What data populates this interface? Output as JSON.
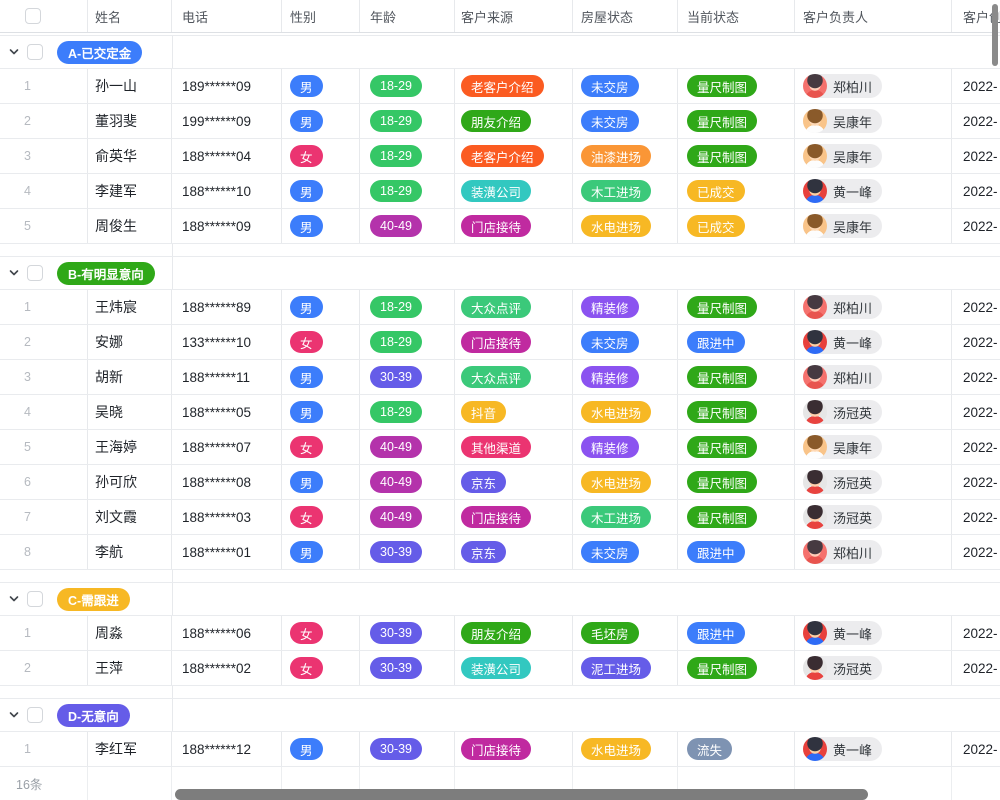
{
  "palette": {
    "blue": "#3c7dfb",
    "green": "#2fa818",
    "emerald": "#35c766",
    "mint": "#3bc97a",
    "indigo": "#655ce8",
    "violet": "#8b53f0",
    "magenta": "#b433ab",
    "deep_magenta": "#c02aa0",
    "pink": "#eb3471",
    "orange_red": "#fb5b21",
    "orange": "#fa9636",
    "amber": "#f7b824",
    "teal": "#32c8c0",
    "slate": "#7e93b2"
  },
  "header": {
    "columns": [
      {
        "label": "姓名"
      },
      {
        "label": "电话"
      },
      {
        "label": "性别"
      },
      {
        "label": "年龄"
      },
      {
        "label": "客户来源"
      },
      {
        "label": "房屋状态"
      },
      {
        "label": "当前状态"
      },
      {
        "label": "客户负责人"
      },
      {
        "label": "客户创建时间"
      }
    ]
  },
  "owners": {
    "郑柏川": {
      "bg": "#f5716d",
      "hair": "#463a41",
      "face": "#ffcdb8",
      "shirt": "#e8544e"
    },
    "吴康年": {
      "bg": "#f9c489",
      "hair": "#8a5a2a",
      "face": "#ffd9b5",
      "shirt": "#fdfdfd"
    },
    "黄一峰": {
      "bg": "#e8413c",
      "hair": "#30333f",
      "face": "#ffcf9f",
      "shirt": "#2e6bf6"
    },
    "汤冠英": {
      "bg": "#e6e6e6",
      "hair": "#3a2d32",
      "face": "#ffd1ad",
      "shirt": "#e8433f"
    }
  },
  "groups": [
    {
      "label": "A-已交定金",
      "color": "blue",
      "rows": [
        {
          "num": "1",
          "name": "孙一山",
          "phone": "189******09",
          "gender": {
            "text": "男",
            "color": "blue"
          },
          "age": {
            "text": "18-29",
            "color": "emerald"
          },
          "source": {
            "text": "老客户介绍",
            "color": "orange_red"
          },
          "house": {
            "text": "未交房",
            "color": "blue"
          },
          "status": {
            "text": "量尺制图",
            "color": "green"
          },
          "owner": "郑柏川",
          "created": "2022-"
        },
        {
          "num": "2",
          "name": "董羽斐",
          "phone": "199******09",
          "gender": {
            "text": "男",
            "color": "blue"
          },
          "age": {
            "text": "18-29",
            "color": "emerald"
          },
          "source": {
            "text": "朋友介绍",
            "color": "green"
          },
          "house": {
            "text": "未交房",
            "color": "blue"
          },
          "status": {
            "text": "量尺制图",
            "color": "green"
          },
          "owner": "吴康年",
          "created": "2022-"
        },
        {
          "num": "3",
          "name": "俞英华",
          "phone": "188******04",
          "gender": {
            "text": "女",
            "color": "pink"
          },
          "age": {
            "text": "18-29",
            "color": "emerald"
          },
          "source": {
            "text": "老客户介绍",
            "color": "orange_red"
          },
          "house": {
            "text": "油漆进场",
            "color": "orange"
          },
          "status": {
            "text": "量尺制图",
            "color": "green"
          },
          "owner": "吴康年",
          "created": "2022-"
        },
        {
          "num": "4",
          "name": "李建军",
          "phone": "188******10",
          "gender": {
            "text": "男",
            "color": "blue"
          },
          "age": {
            "text": "18-29",
            "color": "emerald"
          },
          "source": {
            "text": "装潢公司",
            "color": "teal"
          },
          "house": {
            "text": "木工进场",
            "color": "mint"
          },
          "status": {
            "text": "已成交",
            "color": "amber"
          },
          "owner": "黄一峰",
          "created": "2022-"
        },
        {
          "num": "5",
          "name": "周俊生",
          "phone": "188******09",
          "gender": {
            "text": "男",
            "color": "blue"
          },
          "age": {
            "text": "40-49",
            "color": "magenta"
          },
          "source": {
            "text": "门店接待",
            "color": "deep_magenta"
          },
          "house": {
            "text": "水电进场",
            "color": "amber"
          },
          "status": {
            "text": "已成交",
            "color": "amber"
          },
          "owner": "吴康年",
          "created": "2022-"
        }
      ]
    },
    {
      "label": "B-有明显意向",
      "color": "green",
      "rows": [
        {
          "num": "1",
          "name": "王炜宸",
          "phone": "188******89",
          "gender": {
            "text": "男",
            "color": "blue"
          },
          "age": {
            "text": "18-29",
            "color": "emerald"
          },
          "source": {
            "text": "大众点评",
            "color": "mint"
          },
          "house": {
            "text": "精装修",
            "color": "violet"
          },
          "status": {
            "text": "量尺制图",
            "color": "green"
          },
          "owner": "郑柏川",
          "created": "2022-"
        },
        {
          "num": "2",
          "name": "安娜",
          "phone": "133******10",
          "gender": {
            "text": "女",
            "color": "pink"
          },
          "age": {
            "text": "18-29",
            "color": "emerald"
          },
          "source": {
            "text": "门店接待",
            "color": "deep_magenta"
          },
          "house": {
            "text": "未交房",
            "color": "blue"
          },
          "status": {
            "text": "跟进中",
            "color": "blue"
          },
          "owner": "黄一峰",
          "created": "2022-"
        },
        {
          "num": "3",
          "name": "胡新",
          "phone": "188******11",
          "gender": {
            "text": "男",
            "color": "blue"
          },
          "age": {
            "text": "30-39",
            "color": "indigo"
          },
          "source": {
            "text": "大众点评",
            "color": "mint"
          },
          "house": {
            "text": "精装修",
            "color": "violet"
          },
          "status": {
            "text": "量尺制图",
            "color": "green"
          },
          "owner": "郑柏川",
          "created": "2022-"
        },
        {
          "num": "4",
          "name": "吴晓",
          "phone": "188******05",
          "gender": {
            "text": "男",
            "color": "blue"
          },
          "age": {
            "text": "18-29",
            "color": "emerald"
          },
          "source": {
            "text": "抖音",
            "color": "amber"
          },
          "house": {
            "text": "水电进场",
            "color": "amber"
          },
          "status": {
            "text": "量尺制图",
            "color": "green"
          },
          "owner": "汤冠英",
          "created": "2022-"
        },
        {
          "num": "5",
          "name": "王海婷",
          "phone": "188******07",
          "gender": {
            "text": "女",
            "color": "pink"
          },
          "age": {
            "text": "40-49",
            "color": "magenta"
          },
          "source": {
            "text": "其他渠道",
            "color": "pink"
          },
          "house": {
            "text": "精装修",
            "color": "violet"
          },
          "status": {
            "text": "量尺制图",
            "color": "green"
          },
          "owner": "吴康年",
          "created": "2022-"
        },
        {
          "num": "6",
          "name": "孙可欣",
          "phone": "188******08",
          "gender": {
            "text": "男",
            "color": "blue"
          },
          "age": {
            "text": "40-49",
            "color": "magenta"
          },
          "source": {
            "text": "京东",
            "color": "indigo"
          },
          "house": {
            "text": "水电进场",
            "color": "amber"
          },
          "status": {
            "text": "量尺制图",
            "color": "green"
          },
          "owner": "汤冠英",
          "created": "2022-"
        },
        {
          "num": "7",
          "name": "刘文霞",
          "phone": "188******03",
          "gender": {
            "text": "女",
            "color": "pink"
          },
          "age": {
            "text": "40-49",
            "color": "magenta"
          },
          "source": {
            "text": "门店接待",
            "color": "deep_magenta"
          },
          "house": {
            "text": "木工进场",
            "color": "mint"
          },
          "status": {
            "text": "量尺制图",
            "color": "green"
          },
          "owner": "汤冠英",
          "created": "2022-"
        },
        {
          "num": "8",
          "name": "李航",
          "phone": "188******01",
          "gender": {
            "text": "男",
            "color": "blue"
          },
          "age": {
            "text": "30-39",
            "color": "indigo"
          },
          "source": {
            "text": "京东",
            "color": "indigo"
          },
          "house": {
            "text": "未交房",
            "color": "blue"
          },
          "status": {
            "text": "跟进中",
            "color": "blue"
          },
          "owner": "郑柏川",
          "created": "2022-"
        }
      ]
    },
    {
      "label": "C-需跟进",
      "color": "amber",
      "rows": [
        {
          "num": "1",
          "name": "周淼",
          "phone": "188******06",
          "gender": {
            "text": "女",
            "color": "pink"
          },
          "age": {
            "text": "30-39",
            "color": "indigo"
          },
          "source": {
            "text": "朋友介绍",
            "color": "green"
          },
          "house": {
            "text": "毛坯房",
            "color": "green"
          },
          "status": {
            "text": "跟进中",
            "color": "blue"
          },
          "owner": "黄一峰",
          "created": "2022-"
        },
        {
          "num": "2",
          "name": "王萍",
          "phone": "188******02",
          "gender": {
            "text": "女",
            "color": "pink"
          },
          "age": {
            "text": "30-39",
            "color": "indigo"
          },
          "source": {
            "text": "装潢公司",
            "color": "teal"
          },
          "house": {
            "text": "泥工进场",
            "color": "indigo"
          },
          "status": {
            "text": "量尺制图",
            "color": "green"
          },
          "owner": "汤冠英",
          "created": "2022-"
        }
      ]
    },
    {
      "label": "D-无意向",
      "color": "indigo",
      "rows": [
        {
          "num": "1",
          "name": "李红军",
          "phone": "188******12",
          "gender": {
            "text": "男",
            "color": "blue"
          },
          "age": {
            "text": "30-39",
            "color": "indigo"
          },
          "source": {
            "text": "门店接待",
            "color": "deep_magenta"
          },
          "house": {
            "text": "水电进场",
            "color": "amber"
          },
          "status": {
            "text": "流失",
            "color": "slate"
          },
          "owner": "黄一峰",
          "created": "2022-"
        }
      ]
    }
  ],
  "footer": {
    "count_label": "16条"
  }
}
